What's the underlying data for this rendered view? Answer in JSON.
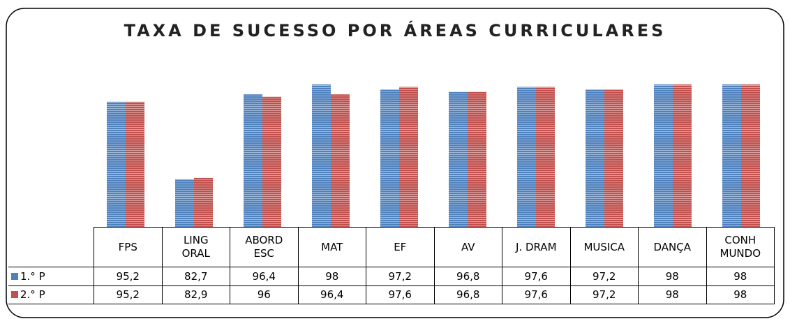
{
  "chart_data": {
    "type": "bar",
    "title": "TAXA DE SUCESSO POR ÁREAS CURRICULARES",
    "categories": [
      "FPS",
      "LING\nORAL",
      "ABORD\nESC",
      "MAT",
      "EF",
      "AV",
      "J. DRAM",
      "MUSICA",
      "DANÇA",
      "CONH\nMUNDO"
    ],
    "series": [
      {
        "name": "1.° P",
        "color": "#4f81bd",
        "values": [
          95.2,
          82.7,
          96.4,
          98,
          97.2,
          96.8,
          97.6,
          97.2,
          98,
          98
        ],
        "value_labels": [
          "95,2",
          "82,7",
          "96,4",
          "98",
          "97,2",
          "96,8",
          "97,6",
          "97,2",
          "98",
          "98"
        ]
      },
      {
        "name": "2.° P",
        "color": "#c0504d",
        "values": [
          95.2,
          82.9,
          96,
          96.4,
          97.6,
          96.8,
          97.6,
          97.2,
          98,
          98
        ],
        "value_labels": [
          "95,2",
          "82,9",
          "96",
          "96,4",
          "97,6",
          "96,8",
          "97,6",
          "97,2",
          "98",
          "98"
        ]
      }
    ],
    "ylim": [
      75,
      98
    ]
  }
}
